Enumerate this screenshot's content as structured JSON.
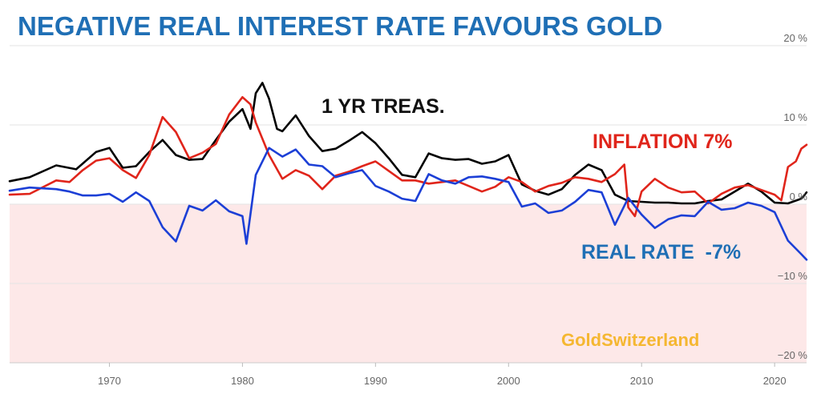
{
  "chart_data": {
    "type": "line",
    "title": "NEGATIVE REAL INTEREST RATE FAVOURS GOLD",
    "xlabel": "",
    "ylabel": "",
    "xlim": [
      1962.5,
      2022.4
    ],
    "ylim": [
      -20,
      20
    ],
    "x_ticks": [
      1970,
      1980,
      1990,
      2000,
      2010,
      2020
    ],
    "y_ticks": [
      {
        "value": 20,
        "label": "20 %"
      },
      {
        "value": 10,
        "label": "10 %"
      },
      {
        "value": 0,
        "label": "0 %"
      },
      {
        "value": -10,
        "label": "−10 %"
      },
      {
        "value": -20,
        "label": "−20 %"
      }
    ],
    "negative_zone_color": "#fde8e8",
    "grid": true,
    "series": [
      {
        "key": "treasury",
        "color": "#000000",
        "points": [
          [
            1962.5,
            2.9
          ],
          [
            1964,
            3.4
          ],
          [
            1966,
            4.9
          ],
          [
            1967.5,
            4.4
          ],
          [
            1969,
            6.6
          ],
          [
            1970,
            7.1
          ],
          [
            1971,
            4.6
          ],
          [
            1972,
            4.8
          ],
          [
            1973,
            6.6
          ],
          [
            1974,
            8.1
          ],
          [
            1975,
            6.2
          ],
          [
            1976,
            5.6
          ],
          [
            1977,
            5.7
          ],
          [
            1978,
            8.1
          ],
          [
            1979,
            10.4
          ],
          [
            1980,
            12.0
          ],
          [
            1980.6,
            9.5
          ],
          [
            1981,
            14.0
          ],
          [
            1981.5,
            15.3
          ],
          [
            1982,
            13.3
          ],
          [
            1982.6,
            9.5
          ],
          [
            1983,
            9.2
          ],
          [
            1984,
            11.2
          ],
          [
            1985,
            8.6
          ],
          [
            1986,
            6.7
          ],
          [
            1987,
            7.0
          ],
          [
            1988,
            8.0
          ],
          [
            1989,
            9.1
          ],
          [
            1990,
            7.7
          ],
          [
            1991,
            5.8
          ],
          [
            1992,
            3.7
          ],
          [
            1993,
            3.4
          ],
          [
            1994,
            6.4
          ],
          [
            1995,
            5.8
          ],
          [
            1996,
            5.6
          ],
          [
            1997,
            5.7
          ],
          [
            1998,
            5.1
          ],
          [
            1999,
            5.4
          ],
          [
            2000,
            6.2
          ],
          [
            2001,
            2.5
          ],
          [
            2002,
            1.7
          ],
          [
            2003,
            1.2
          ],
          [
            2004,
            1.9
          ],
          [
            2005,
            3.7
          ],
          [
            2006,
            5.0
          ],
          [
            2007,
            4.3
          ],
          [
            2008,
            1.2
          ],
          [
            2009,
            0.4
          ],
          [
            2010,
            0.3
          ],
          [
            2011,
            0.2
          ],
          [
            2012,
            0.2
          ],
          [
            2013,
            0.1
          ],
          [
            2014,
            0.1
          ],
          [
            2015,
            0.4
          ],
          [
            2016,
            0.6
          ],
          [
            2017,
            1.6
          ],
          [
            2018,
            2.6
          ],
          [
            2019,
            1.6
          ],
          [
            2020,
            0.2
          ],
          [
            2021,
            0.1
          ],
          [
            2022,
            0.7
          ],
          [
            2022.4,
            1.5
          ]
        ]
      },
      {
        "key": "inflation",
        "color": "#e0251b",
        "points": [
          [
            1962.5,
            1.2
          ],
          [
            1964,
            1.3
          ],
          [
            1966,
            3.0
          ],
          [
            1967,
            2.8
          ],
          [
            1968,
            4.3
          ],
          [
            1969,
            5.5
          ],
          [
            1970,
            5.8
          ],
          [
            1971,
            4.3
          ],
          [
            1972,
            3.3
          ],
          [
            1973,
            6.2
          ],
          [
            1974,
            11.0
          ],
          [
            1975,
            9.1
          ],
          [
            1976,
            5.8
          ],
          [
            1977,
            6.5
          ],
          [
            1978,
            7.6
          ],
          [
            1979,
            11.3
          ],
          [
            1980,
            13.5
          ],
          [
            1980.6,
            12.6
          ],
          [
            1981,
            10.3
          ],
          [
            1982,
            6.2
          ],
          [
            1983,
            3.2
          ],
          [
            1984,
            4.3
          ],
          [
            1985,
            3.6
          ],
          [
            1986,
            1.9
          ],
          [
            1987,
            3.6
          ],
          [
            1988,
            4.1
          ],
          [
            1989,
            4.8
          ],
          [
            1990,
            5.4
          ],
          [
            1991,
            4.2
          ],
          [
            1992,
            3.0
          ],
          [
            1993,
            3.0
          ],
          [
            1994,
            2.6
          ],
          [
            1995,
            2.8
          ],
          [
            1996,
            3.0
          ],
          [
            1997,
            2.3
          ],
          [
            1998,
            1.6
          ],
          [
            1999,
            2.2
          ],
          [
            2000,
            3.4
          ],
          [
            2001,
            2.8
          ],
          [
            2002,
            1.6
          ],
          [
            2003,
            2.3
          ],
          [
            2004,
            2.7
          ],
          [
            2005,
            3.4
          ],
          [
            2006,
            3.2
          ],
          [
            2007,
            2.8
          ],
          [
            2008,
            3.8
          ],
          [
            2008.7,
            5.0
          ],
          [
            2009,
            -0.4
          ],
          [
            2009.5,
            -1.5
          ],
          [
            2010,
            1.6
          ],
          [
            2011,
            3.2
          ],
          [
            2012,
            2.1
          ],
          [
            2013,
            1.5
          ],
          [
            2014,
            1.6
          ],
          [
            2015,
            0.1
          ],
          [
            2016,
            1.3
          ],
          [
            2017,
            2.1
          ],
          [
            2018,
            2.4
          ],
          [
            2019,
            1.8
          ],
          [
            2020,
            1.2
          ],
          [
            2020.5,
            0.5
          ],
          [
            2021,
            4.7
          ],
          [
            2021.6,
            5.4
          ],
          [
            2022,
            7.0
          ],
          [
            2022.4,
            7.5
          ]
        ]
      },
      {
        "key": "real",
        "color": "#1c3fd6",
        "points": [
          [
            1962.5,
            1.7
          ],
          [
            1964,
            2.1
          ],
          [
            1966,
            1.9
          ],
          [
            1967,
            1.6
          ],
          [
            1968,
            1.1
          ],
          [
            1969,
            1.1
          ],
          [
            1970,
            1.3
          ],
          [
            1971,
            0.3
          ],
          [
            1972,
            1.5
          ],
          [
            1973,
            0.4
          ],
          [
            1974,
            -2.9
          ],
          [
            1975,
            -4.7
          ],
          [
            1976,
            -0.2
          ],
          [
            1977,
            -0.8
          ],
          [
            1978,
            0.5
          ],
          [
            1979,
            -0.9
          ],
          [
            1980,
            -1.5
          ],
          [
            1980.3,
            -5.0
          ],
          [
            1981,
            3.7
          ],
          [
            1982,
            7.1
          ],
          [
            1983,
            6.0
          ],
          [
            1984,
            6.9
          ],
          [
            1985,
            5.0
          ],
          [
            1986,
            4.8
          ],
          [
            1987,
            3.4
          ],
          [
            1988,
            3.9
          ],
          [
            1989,
            4.3
          ],
          [
            1990,
            2.3
          ],
          [
            1991,
            1.6
          ],
          [
            1992,
            0.7
          ],
          [
            1993,
            0.4
          ],
          [
            1994,
            3.8
          ],
          [
            1995,
            3.0
          ],
          [
            1996,
            2.6
          ],
          [
            1997,
            3.4
          ],
          [
            1998,
            3.5
          ],
          [
            1999,
            3.2
          ],
          [
            2000,
            2.8
          ],
          [
            2001,
            -0.3
          ],
          [
            2002,
            0.1
          ],
          [
            2003,
            -1.1
          ],
          [
            2004,
            -0.8
          ],
          [
            2005,
            0.3
          ],
          [
            2006,
            1.8
          ],
          [
            2007,
            1.5
          ],
          [
            2008,
            -2.6
          ],
          [
            2009,
            0.8
          ],
          [
            2010,
            -1.3
          ],
          [
            2011,
            -3.0
          ],
          [
            2012,
            -1.9
          ],
          [
            2013,
            -1.4
          ],
          [
            2014,
            -1.5
          ],
          [
            2015,
            0.3
          ],
          [
            2016,
            -0.7
          ],
          [
            2017,
            -0.5
          ],
          [
            2018,
            0.2
          ],
          [
            2019,
            -0.2
          ],
          [
            2020,
            -1.0
          ],
          [
            2021,
            -4.6
          ],
          [
            2022,
            -6.3
          ],
          [
            2022.4,
            -7.0
          ]
        ]
      }
    ],
    "annotations": {
      "treasury": "1 YR TREAS.",
      "inflation": "INFLATION 7%",
      "real": "REAL RATE  -7%",
      "watermark": "GoldSwitzerland"
    }
  },
  "colors": {
    "title": "#1f6fb5",
    "treasury_label": "#111111",
    "inflation_label": "#e0251b",
    "real_label": "#1f6fb5",
    "watermark": "#f5b731",
    "tick_text": "#666666",
    "grid": "#e3e3e3"
  }
}
